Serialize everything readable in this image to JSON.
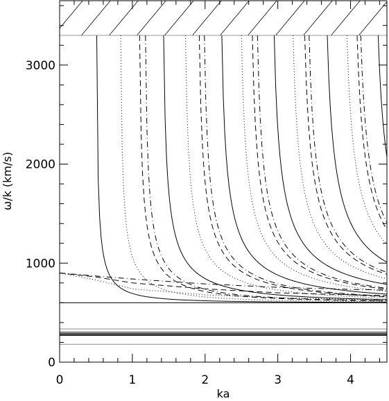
{
  "chart_data": {
    "type": "line",
    "title": "",
    "xlabel": "ka",
    "ylabel": "ω/k (km/s)",
    "xlim": [
      0,
      4.5
    ],
    "ylim": [
      0,
      3650
    ],
    "x_ticks": [
      0,
      1,
      2,
      3,
      4
    ],
    "x_tick_labels": [
      "0",
      "1",
      "2",
      "3",
      "4"
    ],
    "y_ticks": [
      0,
      1000,
      2000,
      3000
    ],
    "y_tick_labels": [
      "0",
      "1000",
      "2000",
      "3000"
    ],
    "grid": false,
    "legend": "none",
    "shaded_region": {
      "y_from": 3300,
      "y_to": 3650,
      "pattern": "diagonal-hatch"
    },
    "horizontal_lines": [
      {
        "y": 600,
        "style": "solid",
        "color": "#000000"
      },
      {
        "y": 335,
        "style": "solid",
        "color": "#888888"
      },
      {
        "y": 302,
        "style": "solid",
        "color": "#000000"
      },
      {
        "y": 287,
        "style": "solid",
        "color": "#000000"
      },
      {
        "y": 280,
        "style": "solid",
        "color": "#000000"
      },
      {
        "y": 270,
        "style": "solid",
        "color": "#000000"
      },
      {
        "y": 180,
        "style": "solid",
        "color": "#888888"
      }
    ],
    "surface_modes": [
      {
        "style": "dashdot",
        "points": [
          [
            0,
            900
          ],
          [
            0.5,
            870
          ],
          [
            1,
            840
          ],
          [
            2,
            790
          ],
          [
            3,
            755
          ],
          [
            4,
            735
          ],
          [
            4.5,
            728
          ]
        ]
      },
      {
        "style": "dash",
        "points": [
          [
            0,
            900
          ],
          [
            0.5,
            860
          ],
          [
            1,
            800
          ],
          [
            2,
            740
          ],
          [
            3,
            700
          ],
          [
            4,
            680
          ],
          [
            4.5,
            672
          ]
        ]
      },
      {
        "style": "dot",
        "points": [
          [
            0,
            900
          ],
          [
            0.5,
            830
          ],
          [
            1,
            740
          ],
          [
            2,
            680
          ],
          [
            3,
            650
          ],
          [
            4,
            635
          ],
          [
            4.5,
            630
          ]
        ]
      }
    ],
    "body_mode_cutoffs": [
      {
        "ka": 0.51,
        "style": "solid"
      },
      {
        "ka": 0.84,
        "style": "dot"
      },
      {
        "ka": 1.1,
        "style": "dash"
      },
      {
        "ka": 1.18,
        "style": "dashdot"
      },
      {
        "ka": 1.43,
        "style": "solid"
      },
      {
        "ka": 1.73,
        "style": "dot"
      },
      {
        "ka": 1.92,
        "style": "dash"
      },
      {
        "ka": 1.99,
        "style": "dashdot"
      },
      {
        "ka": 2.23,
        "style": "solid"
      },
      {
        "ka": 2.5,
        "style": "dot"
      },
      {
        "ka": 2.65,
        "style": "dash"
      },
      {
        "ka": 2.72,
        "style": "dashdot"
      },
      {
        "ka": 2.95,
        "style": "solid"
      },
      {
        "ka": 3.21,
        "style": "dot"
      },
      {
        "ka": 3.37,
        "style": "dash"
      },
      {
        "ka": 3.43,
        "style": "dashdot"
      },
      {
        "ka": 3.68,
        "style": "solid"
      },
      {
        "ka": 3.95,
        "style": "dot"
      },
      {
        "ka": 4.09,
        "style": "dash"
      },
      {
        "ka": 4.14,
        "style": "dashdot"
      },
      {
        "ka": 4.38,
        "style": "solid"
      }
    ],
    "body_mode_curve": {
      "v_cutoff": 3300,
      "v_asymptote": 600
    }
  }
}
